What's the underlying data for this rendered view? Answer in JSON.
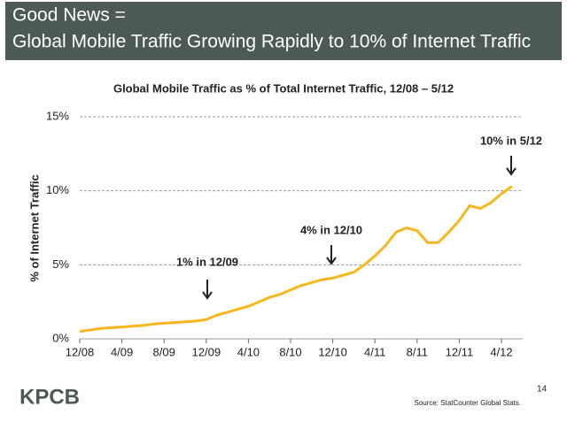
{
  "header": {
    "title": [
      "Good News =",
      "Global Mobile Traffic Growing Rapidly to 10% of Internet Traffic"
    ]
  },
  "chart_data": {
    "type": "line",
    "title": "Global Mobile Traffic as % of Total Internet Traffic, 12/08 – 5/12",
    "y_label": "% of Internet Traffic",
    "x": [
      "12/08",
      "1/09",
      "2/09",
      "3/09",
      "4/09",
      "5/09",
      "6/09",
      "7/09",
      "8/09",
      "9/09",
      "10/09",
      "11/09",
      "12/09",
      "1/10",
      "2/10",
      "3/10",
      "4/10",
      "5/10",
      "6/10",
      "7/10",
      "8/10",
      "9/10",
      "10/10",
      "11/10",
      "12/10",
      "1/11",
      "2/11",
      "3/11",
      "4/11",
      "5/11",
      "6/11",
      "7/11",
      "8/11",
      "9/11",
      "10/11",
      "11/11",
      "12/11",
      "1/12",
      "2/12",
      "3/12",
      "4/12",
      "5/12"
    ],
    "series": [
      {
        "color": "#f5b71c",
        "values": [
          0.5,
          0.6,
          0.7,
          0.75,
          0.8,
          0.85,
          0.9,
          1.0,
          1.05,
          1.1,
          1.15,
          1.2,
          1.3,
          1.6,
          1.8,
          2.0,
          2.2,
          2.5,
          2.8,
          3.0,
          3.3,
          3.6,
          3.8,
          4.0,
          4.1,
          4.3,
          4.5,
          5.0,
          5.6,
          6.3,
          7.2,
          7.5,
          7.3,
          6.5,
          6.5,
          7.2,
          8.0,
          9.0,
          8.8,
          9.2,
          9.8,
          10.3
        ]
      }
    ],
    "xticks": [
      "12/08",
      "4/09",
      "8/09",
      "12/09",
      "4/10",
      "8/10",
      "12/10",
      "4/11",
      "8/11",
      "12/11",
      "4/12"
    ],
    "ylim": [
      0,
      15
    ],
    "yticks": [
      {
        "value": 0,
        "label": "0%"
      },
      {
        "value": 5,
        "label": "5%"
      },
      {
        "value": 10,
        "label": "10%"
      },
      {
        "value": 15,
        "label": "15%"
      }
    ],
    "grid": true,
    "annotations": [
      "1% in 12/09",
      "4% in 12/10",
      "10% in 5/12"
    ]
  },
  "footer": {
    "logo": "KPCB",
    "source": "Source: StatCounter Global Stats.",
    "page": "14"
  }
}
